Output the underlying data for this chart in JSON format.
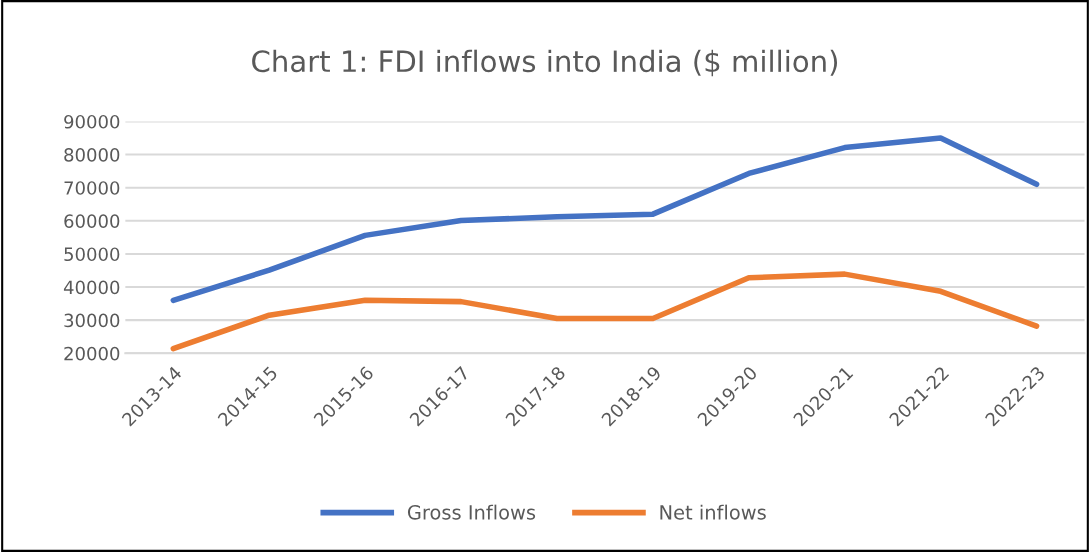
{
  "chart_data": {
    "type": "line",
    "title": "Chart 1: FDI inflows into India ($ million)",
    "categories": [
      "2013-14",
      "2014-15",
      "2015-16",
      "2016-17",
      "2017-18",
      "2018-19",
      "2019-20",
      "2020-21",
      "2021-22",
      "2022-23"
    ],
    "series": [
      {
        "name": "Gross Inflows",
        "color": "#4472c4",
        "values": [
          36000,
          45100,
          55600,
          60100,
          61200,
          62000,
          74300,
          82100,
          85000,
          71000
        ]
      },
      {
        "name": "Net inflows",
        "color": "#ed7d31",
        "values": [
          21400,
          31500,
          36000,
          35600,
          30500,
          30500,
          42800,
          43900,
          38700,
          28200
        ]
      }
    ],
    "ylim": [
      20000,
      90000
    ],
    "yticks": [
      20000,
      30000,
      40000,
      50000,
      60000,
      70000,
      80000,
      90000
    ],
    "grid": "y",
    "legend": "bottom",
    "marker": "none",
    "line_style": "solid"
  }
}
